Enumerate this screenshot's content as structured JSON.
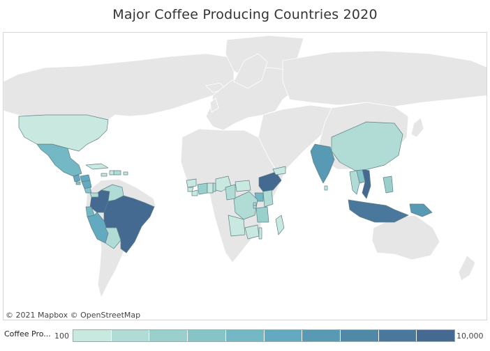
{
  "title": "Major Coffee Producing Countries 2020",
  "attribution": "© 2021 Mapbox © OpenStreetMap",
  "legend": {
    "label": "Coffee Pro...",
    "min_label": "100",
    "max_label": "10,000",
    "colors": [
      "#c9e8e0",
      "#b1dcd6",
      "#9ad0cc",
      "#86c4c8",
      "#73b8c4",
      "#63a9c0",
      "#5899b4",
      "#5088a8",
      "#4a789c",
      "#456a92"
    ]
  },
  "map": {
    "background_color": "#ffffff",
    "land_color": "#e6e6e6",
    "border_color": "#ffffff",
    "producer_border_color": "#5f7f86",
    "producing_countries": [
      {
        "name": "Brazil",
        "level": 10
      },
      {
        "name": "Colombia",
        "level": 10
      },
      {
        "name": "Ethiopia",
        "level": 10
      },
      {
        "name": "Vietnam",
        "level": 10
      },
      {
        "name": "Indonesia",
        "level": 9
      },
      {
        "name": "Papua New Guinea",
        "level": 7
      },
      {
        "name": "India",
        "level": 7
      },
      {
        "name": "Peru",
        "level": 6
      },
      {
        "name": "Honduras",
        "level": 6
      },
      {
        "name": "Mexico",
        "level": 5
      },
      {
        "name": "Ecuador",
        "level": 5
      },
      {
        "name": "Uganda",
        "level": 5
      },
      {
        "name": "Laos",
        "level": 4
      },
      {
        "name": "Philippines",
        "level": 3
      },
      {
        "name": "Venezuela",
        "level": 2
      },
      {
        "name": "Bolivia",
        "level": 2
      },
      {
        "name": "Ivory Coast",
        "level": 3
      },
      {
        "name": "Kenya",
        "level": 2
      },
      {
        "name": "Tanzania",
        "level": 3
      },
      {
        "name": "Democratic Republic of the Congo",
        "level": 2
      },
      {
        "name": "Angola",
        "level": 1
      },
      {
        "name": "Madagascar",
        "level": 1
      },
      {
        "name": "Yemen",
        "level": 1
      },
      {
        "name": "Thailand",
        "level": 2
      },
      {
        "name": "China",
        "level": 2
      },
      {
        "name": "United States",
        "level": 1
      },
      {
        "name": "Guinea",
        "level": 1
      },
      {
        "name": "Nigeria",
        "level": 1
      },
      {
        "name": "Cameroon",
        "level": 2
      },
      {
        "name": "Central African Republic",
        "level": 1
      },
      {
        "name": "Cuba",
        "level": 1
      },
      {
        "name": "Dominican Republic",
        "level": 2
      },
      {
        "name": "Haiti",
        "level": 1
      },
      {
        "name": "Jamaica",
        "level": 1
      },
      {
        "name": "Puerto Rico",
        "level": 1
      },
      {
        "name": "Guatemala",
        "level": 6
      },
      {
        "name": "Nicaragua",
        "level": 6
      },
      {
        "name": "Costa Rica",
        "level": 4
      },
      {
        "name": "El Salvador",
        "level": 4
      },
      {
        "name": "Panama",
        "level": 2
      },
      {
        "name": "Sri Lanka",
        "level": 1
      },
      {
        "name": "Malawi",
        "level": 1
      },
      {
        "name": "Zambia",
        "level": 1
      },
      {
        "name": "Rwanda",
        "level": 2
      },
      {
        "name": "Burundi",
        "level": 2
      },
      {
        "name": "Togo",
        "level": 2
      },
      {
        "name": "Ghana",
        "level": 1
      },
      {
        "name": "Sierra Leone",
        "level": 1
      },
      {
        "name": "Liberia",
        "level": 1
      }
    ]
  }
}
